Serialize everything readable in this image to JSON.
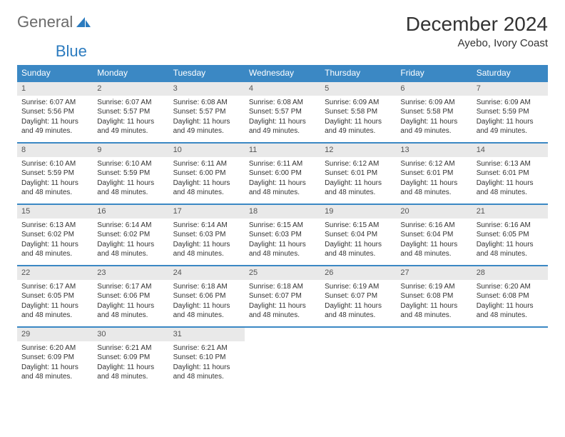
{
  "logo": {
    "word1": "General",
    "word2": "Blue"
  },
  "title": "December 2024",
  "location": "Ayebo, Ivory Coast",
  "colors": {
    "header_bg": "#3b88c4",
    "header_text": "#ffffff",
    "daynum_bg": "#e9e9e9",
    "border": "#3b88c4",
    "logo_gray": "#6a6a6a",
    "logo_blue": "#2b7bbf"
  },
  "weekdays": [
    "Sunday",
    "Monday",
    "Tuesday",
    "Wednesday",
    "Thursday",
    "Friday",
    "Saturday"
  ],
  "weeks": [
    [
      {
        "n": "1",
        "sr": "6:07 AM",
        "ss": "5:56 PM",
        "dl": "11 hours and 49 minutes."
      },
      {
        "n": "2",
        "sr": "6:07 AM",
        "ss": "5:57 PM",
        "dl": "11 hours and 49 minutes."
      },
      {
        "n": "3",
        "sr": "6:08 AM",
        "ss": "5:57 PM",
        "dl": "11 hours and 49 minutes."
      },
      {
        "n": "4",
        "sr": "6:08 AM",
        "ss": "5:57 PM",
        "dl": "11 hours and 49 minutes."
      },
      {
        "n": "5",
        "sr": "6:09 AM",
        "ss": "5:58 PM",
        "dl": "11 hours and 49 minutes."
      },
      {
        "n": "6",
        "sr": "6:09 AM",
        "ss": "5:58 PM",
        "dl": "11 hours and 49 minutes."
      },
      {
        "n": "7",
        "sr": "6:09 AM",
        "ss": "5:59 PM",
        "dl": "11 hours and 49 minutes."
      }
    ],
    [
      {
        "n": "8",
        "sr": "6:10 AM",
        "ss": "5:59 PM",
        "dl": "11 hours and 48 minutes."
      },
      {
        "n": "9",
        "sr": "6:10 AM",
        "ss": "5:59 PM",
        "dl": "11 hours and 48 minutes."
      },
      {
        "n": "10",
        "sr": "6:11 AM",
        "ss": "6:00 PM",
        "dl": "11 hours and 48 minutes."
      },
      {
        "n": "11",
        "sr": "6:11 AM",
        "ss": "6:00 PM",
        "dl": "11 hours and 48 minutes."
      },
      {
        "n": "12",
        "sr": "6:12 AM",
        "ss": "6:01 PM",
        "dl": "11 hours and 48 minutes."
      },
      {
        "n": "13",
        "sr": "6:12 AM",
        "ss": "6:01 PM",
        "dl": "11 hours and 48 minutes."
      },
      {
        "n": "14",
        "sr": "6:13 AM",
        "ss": "6:01 PM",
        "dl": "11 hours and 48 minutes."
      }
    ],
    [
      {
        "n": "15",
        "sr": "6:13 AM",
        "ss": "6:02 PM",
        "dl": "11 hours and 48 minutes."
      },
      {
        "n": "16",
        "sr": "6:14 AM",
        "ss": "6:02 PM",
        "dl": "11 hours and 48 minutes."
      },
      {
        "n": "17",
        "sr": "6:14 AM",
        "ss": "6:03 PM",
        "dl": "11 hours and 48 minutes."
      },
      {
        "n": "18",
        "sr": "6:15 AM",
        "ss": "6:03 PM",
        "dl": "11 hours and 48 minutes."
      },
      {
        "n": "19",
        "sr": "6:15 AM",
        "ss": "6:04 PM",
        "dl": "11 hours and 48 minutes."
      },
      {
        "n": "20",
        "sr": "6:16 AM",
        "ss": "6:04 PM",
        "dl": "11 hours and 48 minutes."
      },
      {
        "n": "21",
        "sr": "6:16 AM",
        "ss": "6:05 PM",
        "dl": "11 hours and 48 minutes."
      }
    ],
    [
      {
        "n": "22",
        "sr": "6:17 AM",
        "ss": "6:05 PM",
        "dl": "11 hours and 48 minutes."
      },
      {
        "n": "23",
        "sr": "6:17 AM",
        "ss": "6:06 PM",
        "dl": "11 hours and 48 minutes."
      },
      {
        "n": "24",
        "sr": "6:18 AM",
        "ss": "6:06 PM",
        "dl": "11 hours and 48 minutes."
      },
      {
        "n": "25",
        "sr": "6:18 AM",
        "ss": "6:07 PM",
        "dl": "11 hours and 48 minutes."
      },
      {
        "n": "26",
        "sr": "6:19 AM",
        "ss": "6:07 PM",
        "dl": "11 hours and 48 minutes."
      },
      {
        "n": "27",
        "sr": "6:19 AM",
        "ss": "6:08 PM",
        "dl": "11 hours and 48 minutes."
      },
      {
        "n": "28",
        "sr": "6:20 AM",
        "ss": "6:08 PM",
        "dl": "11 hours and 48 minutes."
      }
    ],
    [
      {
        "n": "29",
        "sr": "6:20 AM",
        "ss": "6:09 PM",
        "dl": "11 hours and 48 minutes."
      },
      {
        "n": "30",
        "sr": "6:21 AM",
        "ss": "6:09 PM",
        "dl": "11 hours and 48 minutes."
      },
      {
        "n": "31",
        "sr": "6:21 AM",
        "ss": "6:10 PM",
        "dl": "11 hours and 48 minutes."
      },
      null,
      null,
      null,
      null
    ]
  ],
  "labels": {
    "sunrise": "Sunrise:",
    "sunset": "Sunset:",
    "daylight": "Daylight:"
  }
}
